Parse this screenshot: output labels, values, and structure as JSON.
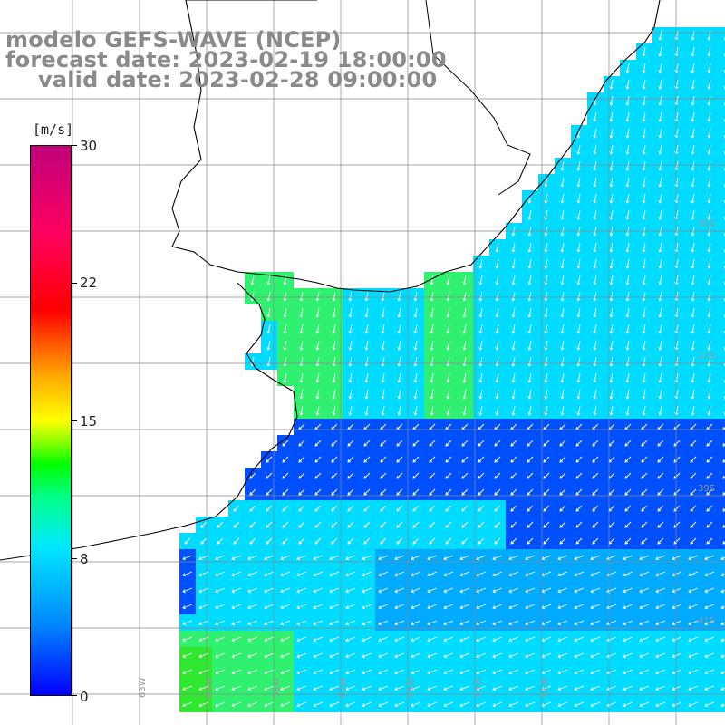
{
  "title": {
    "line1": "modelo GEFS-WAVE (NCEP)",
    "line2": "forecast date: 2023-02-19 18:00:00",
    "line3": "valid date: 2023-02-28 09:00:00"
  },
  "colorbar": {
    "unit": "[m/s]",
    "ticks": [
      "0",
      "8",
      "15",
      "22",
      "30"
    ],
    "stops": [
      "#0000ff",
      "#0088ff",
      "#00e8ff",
      "#00ff88",
      "#00ff00",
      "#ffff00",
      "#ff6600",
      "#ff0000",
      "#c0007a"
    ]
  },
  "lat_labels": [
    "35S",
    "37S",
    "39S",
    "41S"
  ],
  "lon_labels": [
    "63W",
    "62W",
    "59W",
    "57W",
    "55W",
    "53W",
    "51W"
  ],
  "colors": {
    "cyan": "#00dcff",
    "light_blue": "#00aaff",
    "blue": "#0050ff",
    "green": "#30f070",
    "bright_green": "#30e830",
    "arrow": "#ffffff",
    "coast": "#000000",
    "grid": "#888888"
  }
}
